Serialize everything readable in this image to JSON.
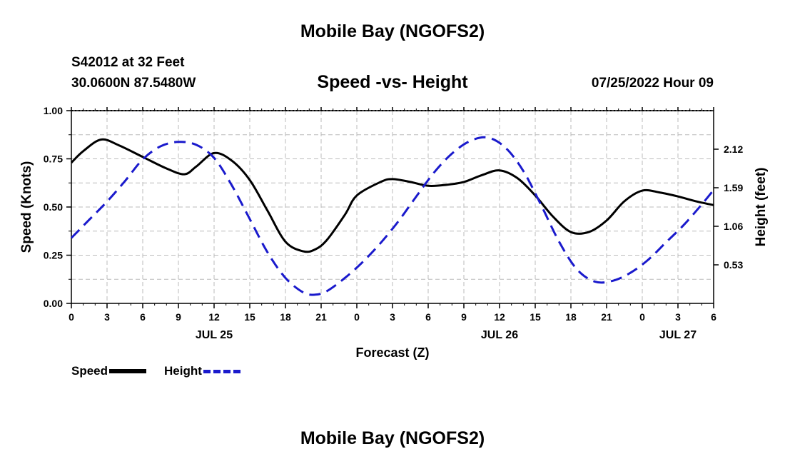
{
  "header": {
    "title": "Mobile Bay (NGOFS2)",
    "station": "S42012 at 32 Feet",
    "coordinates": "30.0600N  87.5480W",
    "subtitle": "Speed -vs- Height",
    "datetime": "07/25/2022 Hour 09"
  },
  "footer": {
    "title": "Mobile Bay (NGOFS2)"
  },
  "legend": {
    "speed_label": "Speed",
    "height_label": "Height"
  },
  "chart_data": {
    "type": "line",
    "xlabel": "Forecast (Z)",
    "ylabel_left": "Speed (Knots)",
    "ylabel_right": "Height (feet)",
    "x_unit": "hours",
    "xlim": [
      0,
      54
    ],
    "x_ticks": [
      0,
      3,
      6,
      9,
      12,
      15,
      18,
      21,
      24,
      27,
      30,
      33,
      36,
      39,
      42,
      45,
      48,
      51,
      54
    ],
    "x_tick_labels": [
      "0",
      "3",
      "6",
      "9",
      "12",
      "15",
      "18",
      "21",
      "0",
      "3",
      "6",
      "9",
      "12",
      "15",
      "18",
      "21",
      "0",
      "3",
      "6"
    ],
    "date_labels": [
      {
        "x": 12,
        "label": "JUL 25"
      },
      {
        "x": 36,
        "label": "JUL 26"
      },
      {
        "x": 51,
        "label": "JUL 27"
      }
    ],
    "ylim_left": [
      0,
      1
    ],
    "y_left_ticks": [
      0,
      0.25,
      0.5,
      0.75,
      1.0
    ],
    "y_left_tick_labels": [
      "0.00",
      "0.25",
      "0.50",
      "0.75",
      "1.00"
    ],
    "ylim_right": [
      0.0,
      2.65
    ],
    "y_right_ticks": [
      0.53,
      1.06,
      1.59,
      2.12
    ],
    "y_right_tick_labels": [
      "0.53",
      "1.06",
      "1.59",
      "2.12"
    ],
    "grid": true,
    "series": [
      {
        "name": "Speed",
        "axis": "left",
        "color": "#000000",
        "style": "solid",
        "x": [
          0,
          1,
          2.5,
          4,
          6,
          8,
          9.5,
          10.5,
          12,
          13.5,
          15,
          16.5,
          18,
          19.5,
          20.5,
          21.5,
          23,
          24,
          26,
          27,
          28.5,
          30,
          31.5,
          33,
          34.5,
          36,
          37.5,
          39,
          40.5,
          42,
          43.5,
          45,
          46.5,
          48,
          49.5,
          51,
          52.5,
          54
        ],
        "y": [
          0.73,
          0.79,
          0.85,
          0.82,
          0.76,
          0.7,
          0.67,
          0.71,
          0.78,
          0.74,
          0.64,
          0.48,
          0.32,
          0.27,
          0.28,
          0.33,
          0.46,
          0.56,
          0.63,
          0.645,
          0.63,
          0.61,
          0.615,
          0.63,
          0.665,
          0.69,
          0.65,
          0.56,
          0.45,
          0.37,
          0.37,
          0.43,
          0.53,
          0.585,
          0.575,
          0.555,
          0.53,
          0.51
        ]
      },
      {
        "name": "Height",
        "axis": "right",
        "color": "#1a1acc",
        "style": "dashed",
        "x": [
          0,
          1.5,
          3,
          4.5,
          6,
          7.5,
          9,
          10.5,
          12,
          13.5,
          15,
          16.5,
          18,
          19.5,
          20.5,
          21.5,
          23,
          24.5,
          26,
          27.5,
          29,
          30.5,
          32,
          33.5,
          35,
          36.5,
          38,
          39.5,
          41,
          42.5,
          44,
          45.5,
          47,
          48.5,
          50,
          51.5,
          53,
          54
        ],
        "y": [
          0.9,
          1.15,
          1.4,
          1.68,
          1.98,
          2.16,
          2.22,
          2.18,
          2.0,
          1.62,
          1.16,
          0.7,
          0.35,
          0.15,
          0.12,
          0.17,
          0.35,
          0.57,
          0.83,
          1.13,
          1.47,
          1.8,
          2.06,
          2.23,
          2.28,
          2.14,
          1.82,
          1.35,
          0.85,
          0.47,
          0.3,
          0.31,
          0.42,
          0.6,
          0.84,
          1.08,
          1.36,
          1.56
        ]
      }
    ]
  }
}
